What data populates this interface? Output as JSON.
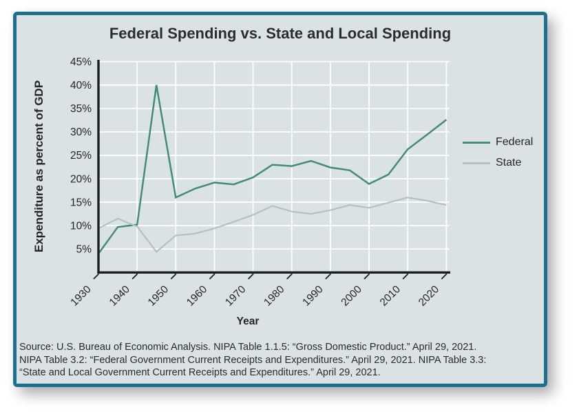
{
  "card": {
    "background": "#dbe2e3",
    "border_color": "#1b7090"
  },
  "chart_data": {
    "type": "line",
    "title": "Federal Spending vs. State and Local Spending",
    "xlabel": "Year",
    "ylabel": "Expenditure as percent of GDP",
    "x": [
      1930,
      1935,
      1940,
      1945,
      1950,
      1955,
      1960,
      1965,
      1970,
      1975,
      1980,
      1985,
      1990,
      1995,
      2000,
      2005,
      2010,
      2015,
      2020
    ],
    "series": [
      {
        "name": "Federal",
        "color": "#418c76",
        "values": [
          4.0,
          9.7,
          10.2,
          40.0,
          16.0,
          17.9,
          19.2,
          18.8,
          20.3,
          23.0,
          22.7,
          23.8,
          22.4,
          21.8,
          18.9,
          20.9,
          26.3,
          29.4,
          32.6
        ]
      },
      {
        "name": "State",
        "color": "#b1c3bd",
        "values": [
          9.4,
          11.5,
          9.8,
          4.4,
          7.9,
          8.3,
          9.4,
          10.8,
          12.3,
          14.2,
          13.0,
          12.5,
          13.3,
          14.4,
          13.8,
          14.9,
          16.0,
          15.3,
          14.4
        ]
      }
    ],
    "ylim": [
      0,
      45
    ],
    "ytick_values": [
      5,
      10,
      15,
      20,
      25,
      30,
      35,
      40,
      45
    ],
    "ytick_labels": [
      "5%",
      "10%",
      "15%",
      "20%",
      "25%",
      "30%",
      "35%",
      "40%",
      "45%"
    ],
    "xtick_values": [
      1930,
      1940,
      1950,
      1960,
      1970,
      1980,
      1990,
      2000,
      2010,
      2020
    ],
    "xtick_labels": [
      "1930",
      "1940",
      "1950",
      "1960",
      "1970",
      "1980",
      "1990",
      "2000",
      "2010",
      "2020"
    ],
    "grid": true,
    "grid_color": "#ffffff",
    "axis_color": "#1c1c1c",
    "legend_position": "right"
  },
  "source": {
    "line1": "Source: U.S. Bureau of Economic Analysis. NIPA Table 1.1.5: “Gross Domestic Product.” April 29, 2021.",
    "line2": "NIPA Table 3.2: “Federal Government Current Receipts and Expenditures.” April 29, 2021. NIPA Table 3.3:",
    "line3": "“State and Local Government Current Receipts and Expenditures.” April 29, 2021."
  }
}
